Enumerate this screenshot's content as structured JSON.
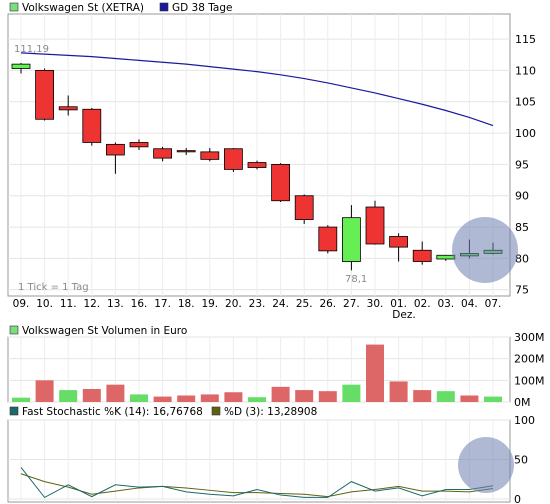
{
  "colors": {
    "up": "#66ee55",
    "down": "#ee3333",
    "ma": "#1a1aa0",
    "volume_up": "#66dd66",
    "volume_down": "#dd6666",
    "stoch_k": "#1a6a6a",
    "stoch_d": "#606010",
    "highlight": "#7080b0"
  },
  "price_panel": {
    "legend": [
      {
        "label": "Volkswagen St (XETRA)",
        "swatch": "#7ddc7d"
      },
      {
        "label": "GD 38 Tage",
        "swatch": "#1a1aa0"
      }
    ],
    "note": "1 Tick = 1 Tag",
    "high_label": "111,19",
    "low_label": "78,1",
    "month_label": "Dez.",
    "ylim": [
      74,
      119
    ]
  },
  "volume_panel": {
    "legend": [
      {
        "label": "Volkswagen St Volumen in Euro",
        "swatch": "#7ddc7d"
      }
    ],
    "ylim": [
      0,
      300
    ]
  },
  "stoch_panel": {
    "legend": [
      {
        "label": "Fast Stochastic %K (14): 16,76768",
        "swatch": "#1a6a6a"
      },
      {
        "label": "%D (3): 13,28908",
        "swatch": "#606010"
      }
    ],
    "ylim": [
      0,
      100
    ]
  },
  "chart_data": [
    {
      "type": "candlestick",
      "title": "Volkswagen St (XETRA)",
      "x": [
        "09.",
        "10.",
        "11.",
        "12.",
        "13.",
        "16.",
        "17.",
        "18.",
        "19.",
        "20.",
        "23.",
        "24.",
        "25.",
        "26.",
        "27.",
        "30.",
        "01.",
        "02.",
        "03.",
        "04.",
        "07."
      ],
      "open": [
        110.3,
        110.0,
        104.2,
        103.8,
        98.2,
        98.5,
        97.5,
        97.2,
        97.0,
        97.5,
        95.3,
        95.0,
        90.0,
        85.0,
        79.5,
        88.2,
        83.5,
        81.3,
        79.9,
        80.4,
        80.8
      ],
      "high": [
        111.19,
        110.3,
        106.0,
        104.0,
        98.5,
        99.0,
        97.8,
        97.6,
        97.6,
        97.6,
        95.6,
        95.2,
        90.2,
        85.3,
        88.5,
        89.2,
        84.0,
        82.7,
        80.5,
        83.0,
        82.5
      ],
      "low": [
        109.5,
        102.0,
        102.8,
        98.0,
        93.5,
        97.3,
        95.5,
        96.5,
        95.5,
        93.8,
        94.2,
        89.0,
        85.5,
        80.8,
        78.1,
        82.2,
        79.5,
        79.0,
        79.6,
        80.0,
        80.6
      ],
      "close": [
        111.0,
        102.2,
        103.7,
        98.5,
        96.5,
        97.8,
        96.0,
        97.0,
        95.8,
        94.2,
        94.5,
        89.2,
        86.2,
        81.2,
        86.5,
        82.3,
        81.8,
        79.5,
        80.5,
        80.8,
        81.3
      ],
      "series": [
        {
          "name": "GD 38 Tage",
          "type": "line",
          "values": [
            112.8,
            112.6,
            112.4,
            112.2,
            111.9,
            111.6,
            111.3,
            111.0,
            110.6,
            110.2,
            109.8,
            109.3,
            108.7,
            108.0,
            107.2,
            106.4,
            105.5,
            104.6,
            103.6,
            102.5,
            101.2
          ]
        }
      ],
      "yticks": [
        75,
        80,
        85,
        90,
        95,
        100,
        105,
        110,
        115
      ],
      "ylim": [
        74,
        119
      ],
      "annotations": [
        "111,19",
        "78,1",
        "1 Tick = 1 Tag",
        "Dez."
      ]
    },
    {
      "type": "bar",
      "title": "Volkswagen St Volumen in Euro",
      "categories": [
        "09.",
        "10.",
        "11.",
        "12.",
        "13.",
        "16.",
        "17.",
        "18.",
        "19.",
        "20.",
        "23.",
        "24.",
        "25.",
        "26.",
        "27.",
        "30.",
        "01.",
        "02.",
        "03.",
        "04.",
        "07."
      ],
      "values": [
        20,
        100,
        55,
        60,
        80,
        35,
        25,
        30,
        35,
        45,
        22,
        70,
        55,
        50,
        80,
        265,
        95,
        55,
        50,
        30,
        25
      ],
      "direction": [
        "up",
        "down",
        "up",
        "down",
        "down",
        "up",
        "down",
        "down",
        "down",
        "down",
        "up",
        "down",
        "down",
        "down",
        "up",
        "down",
        "down",
        "down",
        "up",
        "down",
        "up"
      ],
      "yticks": [
        "0M",
        "100M",
        "200M",
        "300M"
      ],
      "ylim": [
        0,
        300
      ]
    },
    {
      "type": "line",
      "title": "Fast Stochastic",
      "x": [
        "09.",
        "10.",
        "11.",
        "12.",
        "13.",
        "16.",
        "17.",
        "18.",
        "19.",
        "20.",
        "23.",
        "24.",
        "25.",
        "26.",
        "27.",
        "30.",
        "01.",
        "02.",
        "03.",
        "04.",
        "07."
      ],
      "series": [
        {
          "name": "Fast Stochastic %K (14): 16,76768",
          "values": [
            40,
            2,
            18,
            3,
            18,
            15,
            16,
            9,
            6,
            4,
            12,
            5,
            2,
            2,
            22,
            10,
            14,
            4,
            12,
            12,
            16.8
          ]
        },
        {
          "name": "%D (3): 13,28908",
          "values": [
            32,
            22,
            15,
            6,
            10,
            14,
            16,
            14,
            11,
            8,
            8,
            7,
            6,
            3,
            9,
            12,
            16,
            10,
            10,
            9,
            13.3
          ]
        }
      ],
      "yticks": [
        0,
        50,
        100
      ],
      "ylim": [
        0,
        100
      ]
    }
  ]
}
